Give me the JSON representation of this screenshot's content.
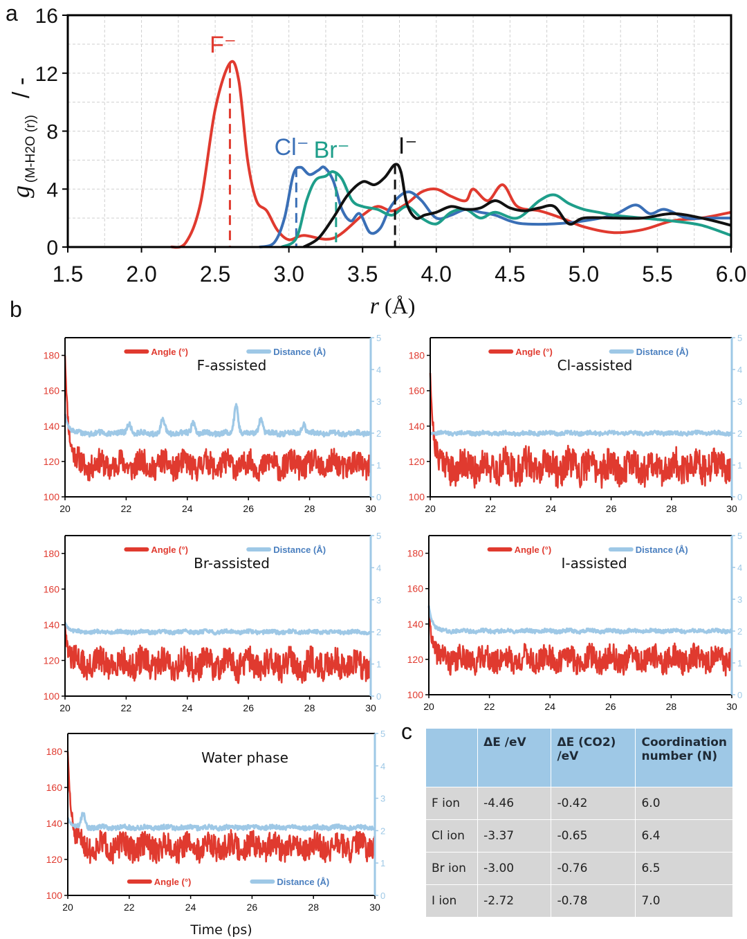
{
  "panel_labels": {
    "a": "a",
    "b": "b",
    "c": "c"
  },
  "chart_data": [
    {
      "id": "a",
      "type": "line",
      "title": "",
      "ylabel_main": "g",
      "ylabel_sub": "(M-H2O (r))",
      "ylabel_tail": "/ -",
      "xlabel_main": "r",
      "xlabel_unit": "(Å)",
      "xlim": [
        1.5,
        6.0
      ],
      "ylim": [
        0,
        16
      ],
      "xticks": [
        "1.5",
        "2.0",
        "2.5",
        "3.0",
        "3.5",
        "4.0",
        "4.5",
        "5.0",
        "5.5",
        "6.0"
      ],
      "yticks": [
        "0",
        "4",
        "8",
        "12",
        "16"
      ],
      "grid": true,
      "series": [
        {
          "name": "F⁻",
          "color": "#e03a2f",
          "points": [
            [
              2.2,
              0
            ],
            [
              2.3,
              0.3
            ],
            [
              2.4,
              3
            ],
            [
              2.5,
              9.5
            ],
            [
              2.6,
              12.7
            ],
            [
              2.66,
              11.5
            ],
            [
              2.72,
              6
            ],
            [
              2.78,
              3.2
            ],
            [
              2.85,
              2.5
            ],
            [
              2.92,
              1.2
            ],
            [
              3.0,
              0.5
            ],
            [
              3.1,
              0.8
            ],
            [
              3.3,
              0.6
            ],
            [
              3.5,
              2.2
            ],
            [
              3.6,
              2.8
            ],
            [
              3.7,
              2.5
            ],
            [
              3.8,
              3.0
            ],
            [
              3.9,
              3.8
            ],
            [
              4.0,
              4.0
            ],
            [
              4.1,
              3.5
            ],
            [
              4.2,
              3.2
            ],
            [
              4.25,
              4.0
            ],
            [
              4.35,
              3.2
            ],
            [
              4.45,
              4.3
            ],
            [
              4.55,
              2.8
            ],
            [
              4.7,
              2.5
            ],
            [
              4.85,
              2.0
            ],
            [
              5.0,
              1.4
            ],
            [
              5.2,
              1.0
            ],
            [
              5.4,
              1.2
            ],
            [
              5.6,
              1.8
            ],
            [
              5.8,
              2.0
            ],
            [
              6.0,
              2.4
            ]
          ],
          "peak_x": 2.6
        },
        {
          "name": "Cl⁻",
          "color": "#3a6fb6",
          "points": [
            [
              2.8,
              0
            ],
            [
              2.9,
              0.3
            ],
            [
              2.97,
              2.0
            ],
            [
              3.03,
              5.0
            ],
            [
              3.08,
              5.5
            ],
            [
              3.14,
              5.0
            ],
            [
              3.2,
              5.3
            ],
            [
              3.24,
              5.5
            ],
            [
              3.3,
              4.6
            ],
            [
              3.36,
              2.6
            ],
            [
              3.42,
              1.8
            ],
            [
              3.48,
              2.3
            ],
            [
              3.55,
              1.0
            ],
            [
              3.62,
              1.3
            ],
            [
              3.68,
              2.6
            ],
            [
              3.75,
              3.5
            ],
            [
              3.82,
              3.8
            ],
            [
              3.9,
              3.2
            ],
            [
              4.0,
              2.0
            ],
            [
              4.1,
              2.2
            ],
            [
              4.2,
              2.6
            ],
            [
              4.3,
              2.4
            ],
            [
              4.4,
              2.2
            ],
            [
              4.5,
              1.8
            ],
            [
              4.6,
              1.6
            ],
            [
              4.8,
              1.6
            ],
            [
              5.0,
              1.8
            ],
            [
              5.2,
              2.2
            ],
            [
              5.35,
              2.9
            ],
            [
              5.45,
              2.3
            ],
            [
              5.55,
              2.6
            ],
            [
              5.7,
              2.0
            ],
            [
              5.85,
              2.0
            ],
            [
              6.0,
              2.0
            ]
          ],
          "peak_x": 3.05
        },
        {
          "name": "Br⁻",
          "color": "#1e9e8a",
          "points": [
            [
              2.95,
              0
            ],
            [
              3.05,
              0.6
            ],
            [
              3.12,
              3.2
            ],
            [
              3.18,
              4.6
            ],
            [
              3.25,
              4.9
            ],
            [
              3.3,
              5.2
            ],
            [
              3.36,
              4.7
            ],
            [
              3.43,
              3.2
            ],
            [
              3.5,
              2.8
            ],
            [
              3.6,
              2.6
            ],
            [
              3.7,
              2.2
            ],
            [
              3.8,
              2.8
            ],
            [
              3.9,
              2.0
            ],
            [
              4.0,
              1.6
            ],
            [
              4.1,
              2.4
            ],
            [
              4.2,
              2.6
            ],
            [
              4.3,
              2.0
            ],
            [
              4.4,
              2.4
            ],
            [
              4.55,
              2.0
            ],
            [
              4.7,
              3.2
            ],
            [
              4.8,
              3.6
            ],
            [
              4.9,
              3.0
            ],
            [
              5.0,
              2.6
            ],
            [
              5.1,
              2.4
            ],
            [
              5.2,
              2.2
            ],
            [
              5.4,
              2.0
            ],
            [
              5.6,
              1.8
            ],
            [
              5.8,
              1.5
            ],
            [
              6.0,
              0.8
            ]
          ],
          "peak_x": 3.32
        },
        {
          "name": "I⁻",
          "color": "#111111",
          "points": [
            [
              3.1,
              0
            ],
            [
              3.2,
              0.6
            ],
            [
              3.3,
              2.0
            ],
            [
              3.4,
              3.6
            ],
            [
              3.5,
              4.5
            ],
            [
              3.58,
              4.3
            ],
            [
              3.65,
              4.8
            ],
            [
              3.72,
              5.7
            ],
            [
              3.76,
              5.2
            ],
            [
              3.8,
              3.0
            ],
            [
              3.86,
              2.0
            ],
            [
              3.92,
              2.2
            ],
            [
              4.0,
              2.4
            ],
            [
              4.1,
              2.8
            ],
            [
              4.2,
              2.6
            ],
            [
              4.3,
              2.7
            ],
            [
              4.4,
              3.2
            ],
            [
              4.5,
              2.7
            ],
            [
              4.6,
              2.5
            ],
            [
              4.7,
              2.7
            ],
            [
              4.8,
              2.8
            ],
            [
              4.9,
              1.6
            ],
            [
              5.0,
              2.0
            ],
            [
              5.2,
              2.0
            ],
            [
              5.4,
              2.0
            ],
            [
              5.6,
              2.3
            ],
            [
              5.8,
              2.0
            ],
            [
              6.0,
              1.5
            ]
          ],
          "peak_x": 3.72
        }
      ]
    },
    {
      "id": "b-F",
      "type": "line",
      "title": "F-assisted",
      "xlim": [
        20,
        30
      ],
      "ylim_left": [
        100,
        190
      ],
      "ylim_right": [
        0,
        5
      ],
      "xticks": [
        "20",
        "22",
        "24",
        "26",
        "28",
        "30"
      ],
      "yticks_left": [
        "100",
        "120",
        "140",
        "160",
        "180"
      ],
      "yticks_right": [
        "0",
        "1",
        "2",
        "3",
        "4",
        "5"
      ],
      "legend_position": "top",
      "series": [
        {
          "name": "Angle (°)",
          "axis": "left",
          "color": "#e03a2f",
          "mean": 118,
          "amplitude": 7,
          "start": 180,
          "seed": 11
        },
        {
          "name": "Distance (Å)",
          "axis": "right",
          "color": "#9ec8e6",
          "mean": 2.0,
          "amplitude": 0.08,
          "start": 2.6,
          "seed": 12,
          "spikes": [
            [
              22.1,
              0.3
            ],
            [
              23.2,
              0.4
            ],
            [
              24.2,
              0.35
            ],
            [
              25.6,
              0.9
            ],
            [
              26.4,
              0.45
            ],
            [
              27.8,
              0.3
            ]
          ]
        }
      ]
    },
    {
      "id": "b-Cl",
      "type": "line",
      "title": "Cl-assisted",
      "xlim": [
        20,
        30
      ],
      "ylim_left": [
        100,
        190
      ],
      "ylim_right": [
        0,
        5
      ],
      "xticks": [
        "20",
        "22",
        "24",
        "26",
        "28",
        "30"
      ],
      "yticks_left": [
        "100",
        "120",
        "140",
        "160",
        "180"
      ],
      "yticks_right": [
        "0",
        "1",
        "2",
        "3",
        "4",
        "5"
      ],
      "legend_position": "top",
      "series": [
        {
          "name": "Angle (°)",
          "axis": "left",
          "color": "#e03a2f",
          "mean": 117,
          "amplitude": 9,
          "start": 170,
          "seed": 21
        },
        {
          "name": "Distance (Å)",
          "axis": "right",
          "color": "#9ec8e6",
          "mean": 2.0,
          "amplitude": 0.06,
          "start": 2.0,
          "seed": 22,
          "spikes": []
        }
      ]
    },
    {
      "id": "b-Br",
      "type": "line",
      "title": "Br-assisted",
      "xlim": [
        20,
        30
      ],
      "ylim_left": [
        100,
        190
      ],
      "ylim_right": [
        0,
        5
      ],
      "xticks": [
        "20",
        "22",
        "24",
        "26",
        "28",
        "30"
      ],
      "yticks_left": [
        "100",
        "120",
        "140",
        "160",
        "180"
      ],
      "yticks_right": [
        "0",
        "1",
        "2",
        "3",
        "4",
        "5"
      ],
      "legend_position": "top",
      "series": [
        {
          "name": "Angle (°)",
          "axis": "left",
          "color": "#e03a2f",
          "mean": 118,
          "amplitude": 8,
          "start": 140,
          "seed": 31
        },
        {
          "name": "Distance (Å)",
          "axis": "right",
          "color": "#9ec8e6",
          "mean": 2.0,
          "amplitude": 0.06,
          "start": 2.3,
          "seed": 32,
          "spikes": []
        }
      ]
    },
    {
      "id": "b-I",
      "type": "line",
      "title": "I-assisted",
      "xlim": [
        20,
        30
      ],
      "ylim_left": [
        100,
        190
      ],
      "ylim_right": [
        0,
        5
      ],
      "xticks": [
        "20",
        "22",
        "24",
        "26",
        "28",
        "30"
      ],
      "yticks_left": [
        "100",
        "120",
        "140",
        "160",
        "180"
      ],
      "yticks_right": [
        "0",
        "1",
        "2",
        "3",
        "4",
        "5"
      ],
      "legend_position": "top",
      "series": [
        {
          "name": "Angle (°)",
          "axis": "left",
          "color": "#e03a2f",
          "mean": 120,
          "amplitude": 7,
          "start": 150,
          "seed": 41
        },
        {
          "name": "Distance (Å)",
          "axis": "right",
          "color": "#9ec8e6",
          "mean": 2.0,
          "amplitude": 0.06,
          "start": 2.8,
          "seed": 42,
          "spikes": []
        }
      ]
    },
    {
      "id": "b-W",
      "type": "line",
      "title": "Water phase",
      "xlabel": "Time (ps)",
      "xlim": [
        20,
        30
      ],
      "ylim_left": [
        100,
        190
      ],
      "ylim_right": [
        0,
        5
      ],
      "xticks": [
        "20",
        "22",
        "24",
        "26",
        "28",
        "30"
      ],
      "yticks_left": [
        "100",
        "120",
        "140",
        "160",
        "180"
      ],
      "yticks_right": [
        "0",
        "1",
        "2",
        "3",
        "4",
        "5"
      ],
      "legend_position": "bottom",
      "series": [
        {
          "name": "Angle (°)",
          "axis": "left",
          "color": "#e03a2f",
          "mean": 127,
          "amplitude": 7,
          "start": 180,
          "seed": 51
        },
        {
          "name": "Distance (Å)",
          "axis": "right",
          "color": "#9ec8e6",
          "mean": 2.1,
          "amplitude": 0.07,
          "start": 2.4,
          "seed": 52,
          "spikes": [
            [
              20.5,
              0.4
            ]
          ]
        }
      ]
    }
  ],
  "table": {
    "headers": [
      "",
      "ΔE /eV",
      "ΔE (CO2) /eV",
      "Coordination number (N)"
    ],
    "rows": [
      [
        "F ion",
        "-4.46",
        "-0.42",
        "6.0"
      ],
      [
        "Cl ion",
        "-3.37",
        "-0.65",
        "6.4"
      ],
      [
        "Br ion",
        "-3.00",
        "-0.76",
        "6.5"
      ],
      [
        "I ion",
        "-2.72",
        "-0.78",
        "7.0"
      ]
    ]
  }
}
